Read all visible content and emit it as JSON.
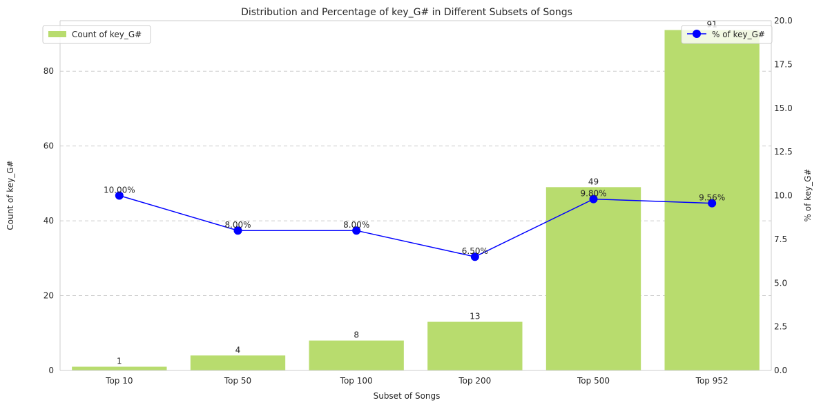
{
  "chart_data": {
    "type": "bar",
    "title": "Distribution and Percentage of key_G# in Different Subsets of Songs",
    "xlabel": "Subset of Songs",
    "ylabel": "Count of key_G#",
    "y2label": "% of key_G#",
    "categories": [
      "Top 10",
      "Top 50",
      "Top 100",
      "Top 200",
      "Top 500",
      "Top 952"
    ],
    "series": [
      {
        "name": "Count of key_G#",
        "type": "bar",
        "axis": "left",
        "color": "#b8dc6e",
        "values": [
          1,
          4,
          8,
          13,
          49,
          91
        ],
        "labels": [
          "1",
          "4",
          "8",
          "13",
          "49",
          "91"
        ]
      },
      {
        "name": "% of key_G#",
        "type": "line",
        "axis": "right",
        "color": "#0000ff",
        "marker": "circle",
        "values": [
          10.0,
          8.0,
          8.0,
          6.5,
          9.8,
          9.56
        ],
        "labels": [
          "10.00%",
          "8.00%",
          "8.00%",
          "6.50%",
          "9.80%",
          "9.56%"
        ]
      }
    ],
    "ylim": [
      0,
      93.5
    ],
    "yticks": [
      0,
      20,
      40,
      60,
      80
    ],
    "y2lim": [
      0,
      20
    ],
    "y2ticks": [
      "0.0",
      "2.5",
      "5.0",
      "7.5",
      "10.0",
      "12.5",
      "15.0",
      "17.5",
      "20.0"
    ],
    "grid": true,
    "legend_left": "upper-left",
    "legend_right": "upper-right"
  }
}
